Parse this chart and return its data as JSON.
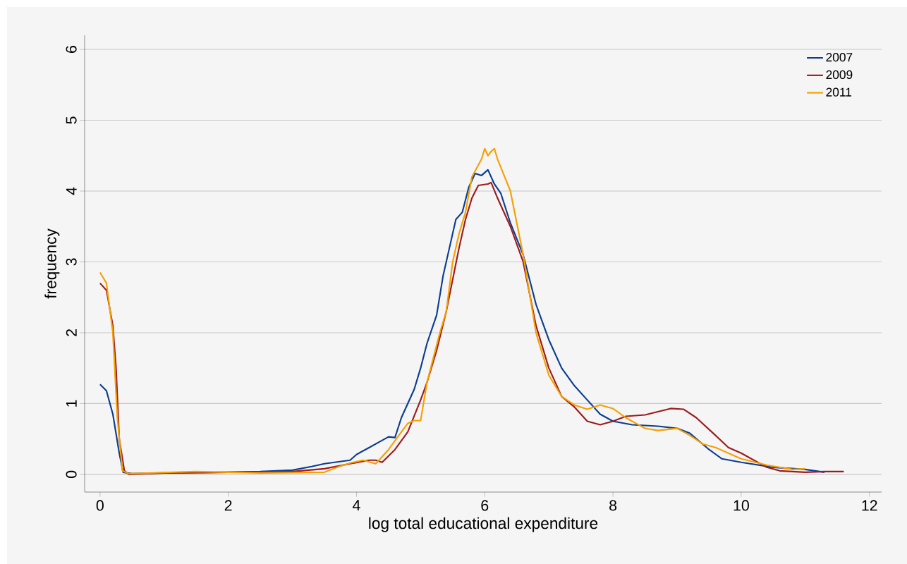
{
  "chart_data": {
    "type": "line",
    "xlabel": "log total educational expenditure",
    "ylabel": "frequency",
    "xlim": [
      -0.24,
      12.19
    ],
    "ylim": [
      -0.25,
      6.2
    ],
    "xticks": [
      0,
      2,
      4,
      6,
      8,
      10,
      12
    ],
    "yticks": [
      0,
      1,
      2,
      3,
      4,
      5,
      6
    ],
    "grid": "y",
    "legend": "top right",
    "marker": "none",
    "line_style": "solid",
    "series": [
      {
        "name": "2007",
        "color": "#0b3d91",
        "x": [
          0,
          0.1,
          0.2,
          0.3,
          0.36,
          0.5,
          1,
          2,
          2.5,
          3,
          3.3,
          3.5,
          3.9,
          4.0,
          4.2,
          4.4,
          4.5,
          4.6,
          4.7,
          4.9,
          5.0,
          5.1,
          5.25,
          5.35,
          5.45,
          5.55,
          5.65,
          5.75,
          5.85,
          5.95,
          6.05,
          6.15,
          6.25,
          6.4,
          6.6,
          6.8,
          7.0,
          7.2,
          7.4,
          7.6,
          7.8,
          8.0,
          8.3,
          8.7,
          9.0,
          9.2,
          9.5,
          9.7,
          10.0,
          10.5,
          11,
          11.3
        ],
        "values": [
          1.27,
          1.18,
          0.85,
          0.3,
          0.03,
          0.01,
          0.02,
          0.03,
          0.04,
          0.06,
          0.11,
          0.15,
          0.2,
          0.28,
          0.38,
          0.48,
          0.53,
          0.52,
          0.8,
          1.2,
          1.5,
          1.85,
          2.25,
          2.8,
          3.2,
          3.6,
          3.7,
          4.05,
          4.25,
          4.22,
          4.3,
          4.1,
          3.97,
          3.55,
          3.1,
          2.4,
          1.9,
          1.5,
          1.25,
          1.05,
          0.85,
          0.75,
          0.7,
          0.68,
          0.65,
          0.58,
          0.35,
          0.22,
          0.17,
          0.1,
          0.07,
          0.03
        ]
      },
      {
        "name": "2009",
        "color": "#9b1b1e",
        "x": [
          0,
          0.1,
          0.2,
          0.25,
          0.3,
          0.38,
          0.45,
          1,
          2,
          3,
          3.5,
          3.9,
          4.2,
          4.3,
          4.4,
          4.6,
          4.8,
          5.0,
          5.1,
          5.25,
          5.4,
          5.5,
          5.6,
          5.7,
          5.8,
          5.9,
          6.05,
          6.1,
          6.2,
          6.4,
          6.6,
          6.8,
          7.0,
          7.2,
          7.4,
          7.6,
          7.8,
          8.0,
          8.2,
          8.5,
          8.9,
          9.1,
          9.3,
          9.6,
          9.8,
          10.0,
          10.2,
          10.4,
          10.6,
          11,
          11.3,
          11.6
        ],
        "values": [
          2.7,
          2.6,
          2.1,
          1.5,
          0.5,
          0.05,
          0.0,
          0.02,
          0.03,
          0.04,
          0.08,
          0.15,
          0.2,
          0.2,
          0.17,
          0.35,
          0.6,
          1.05,
          1.3,
          1.75,
          2.3,
          2.75,
          3.2,
          3.6,
          3.9,
          4.08,
          4.1,
          4.12,
          3.9,
          3.5,
          3.0,
          2.1,
          1.5,
          1.1,
          0.95,
          0.75,
          0.7,
          0.75,
          0.82,
          0.84,
          0.93,
          0.92,
          0.8,
          0.55,
          0.38,
          0.3,
          0.2,
          0.1,
          0.05,
          0.03,
          0.04,
          0.04
        ]
      },
      {
        "name": "2011",
        "color": "#f5a000",
        "x": [
          0,
          0.1,
          0.2,
          0.27,
          0.35,
          0.45,
          1.5,
          2.5,
          3.5,
          3.7,
          3.9,
          4.1,
          4.3,
          4.5,
          4.7,
          4.8,
          4.9,
          5.0,
          5.1,
          5.3,
          5.4,
          5.5,
          5.6,
          5.7,
          5.8,
          5.95,
          6.0,
          6.05,
          6.1,
          6.15,
          6.2,
          6.4,
          6.6,
          6.8,
          7.0,
          7.2,
          7.4,
          7.6,
          7.8,
          8.0,
          8.2,
          8.5,
          8.7,
          9.0,
          9.2,
          9.4,
          9.6,
          9.8,
          10.0,
          10.4,
          10.8,
          11.0
        ],
        "values": [
          2.85,
          2.7,
          2.0,
          0.8,
          0.05,
          0.01,
          0.04,
          0.02,
          0.03,
          0.1,
          0.16,
          0.2,
          0.15,
          0.35,
          0.6,
          0.72,
          0.76,
          0.76,
          1.3,
          2.0,
          2.3,
          3.0,
          3.4,
          3.7,
          4.2,
          4.45,
          4.6,
          4.5,
          4.56,
          4.6,
          4.45,
          4.0,
          3.1,
          2.0,
          1.4,
          1.1,
          0.98,
          0.92,
          0.98,
          0.93,
          0.8,
          0.65,
          0.62,
          0.65,
          0.55,
          0.43,
          0.38,
          0.3,
          0.22,
          0.13,
          0.07,
          0.08
        ]
      }
    ]
  }
}
